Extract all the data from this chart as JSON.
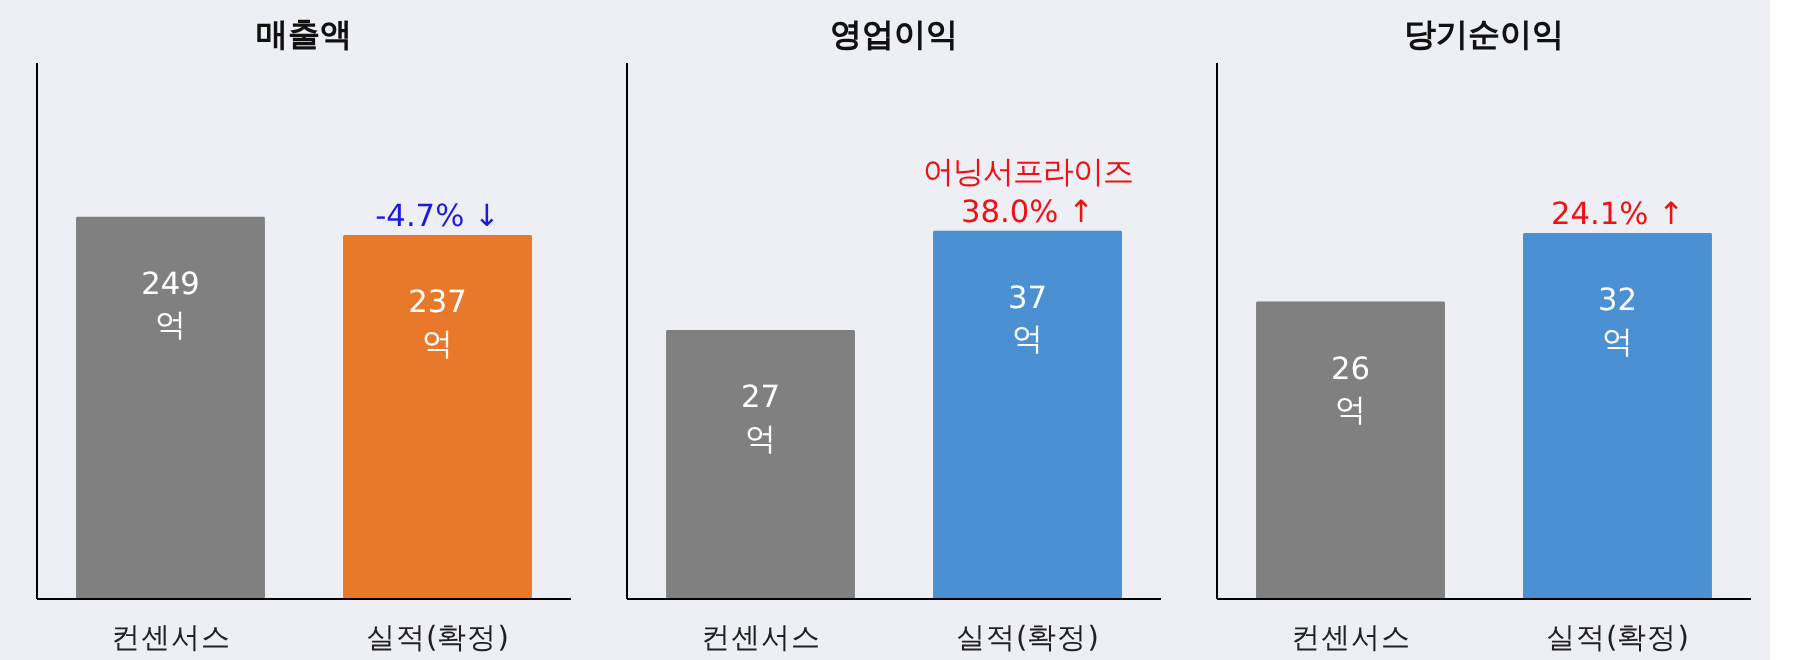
{
  "chart_data": [
    {
      "type": "bar",
      "title": "매출액",
      "categories": [
        "컨센서스",
        "실적(확정)"
      ],
      "values": [
        249,
        237
      ],
      "colors": [
        "#808080",
        "#e8792b"
      ],
      "value_labels": [
        "249\n억",
        "237\n억"
      ],
      "ylim": [
        0,
        350
      ],
      "tick_labels": "x",
      "grid": false,
      "annotations": [
        {
          "text": "-4.7% ↓",
          "x": "실적(확정)",
          "y": 237
        }
      ]
    },
    {
      "type": "bar",
      "title": "영업이익",
      "categories": [
        "컨센서스",
        "실적(확정)"
      ],
      "values": [
        27,
        37
      ],
      "colors": [
        "#808080",
        "#4a90d2"
      ],
      "value_labels": [
        "27\n억",
        "37\n억"
      ],
      "ylim": [
        0,
        54
      ],
      "tick_labels": "x",
      "grid": false,
      "annotations": [
        {
          "text": "어닝서프라이즈\n38.0% ↑",
          "x": "실적(확정)",
          "y": 37
        }
      ]
    },
    {
      "type": "bar",
      "title": "당기순이익",
      "categories": [
        "컨센서스",
        "실적(확정)"
      ],
      "values": [
        26,
        32
      ],
      "colors": [
        "#808080",
        "#4a90d2"
      ],
      "value_labels": [
        "26\n억",
        "32\n억"
      ],
      "ylim": [
        0,
        47
      ],
      "tick_labels": "x",
      "grid": false,
      "annotations": [
        {
          "text": "24.1% ↑",
          "x": "실적(확정)",
          "y": 32
        }
      ]
    }
  ]
}
